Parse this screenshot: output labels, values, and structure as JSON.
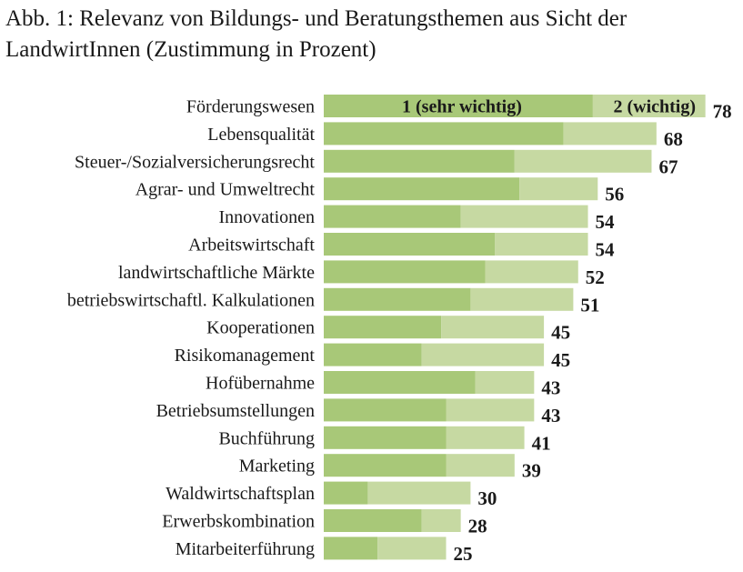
{
  "colors": {
    "sehr_wichtig": "#a8c878",
    "wichtig": "#c6d9a2",
    "text": "#1a1a1a"
  },
  "chart_data": {
    "type": "bar",
    "orientation": "horizontal",
    "stacked": true,
    "title": "Abb. 1: Relevanz von Bildungs- und Beratungsthemen aus Sicht der LandwirtInnen (Zustimmung in Prozent)",
    "xlabel": "",
    "ylabel": "",
    "xlim": [
      0,
      80
    ],
    "grid": false,
    "legend_position": "inside-first-bar",
    "categories": [
      "Förderungswesen",
      "Lebensqualität",
      "Steuer-/Sozialversicherungsrecht",
      "Agrar- und Umweltrecht",
      "Innovationen",
      "Arbeitswirtschaft",
      "landwirtschaftliche Märkte",
      "betriebswirtschaftl. Kalkulationen",
      "Kooperationen",
      "Risikomanagement",
      "Hofübernahme",
      "Betriebsumstellungen",
      "Buchführung",
      "Marketing",
      "Waldwirtschaftsplan",
      "Erwerbskombination",
      "Mitarbeiterführung"
    ],
    "series": [
      {
        "name": "1 (sehr wichtig)",
        "values": [
          55,
          49,
          39,
          40,
          28,
          35,
          33,
          30,
          24,
          20,
          31,
          25,
          25,
          25,
          9,
          20,
          11
        ]
      },
      {
        "name": "2 (wichtig)",
        "values": [
          23,
          19,
          28,
          16,
          26,
          19,
          19,
          21,
          21,
          25,
          12,
          18,
          16,
          14,
          21,
          8,
          14
        ]
      }
    ],
    "totals": [
      78,
      68,
      67,
      56,
      54,
      54,
      52,
      51,
      45,
      45,
      43,
      43,
      41,
      39,
      30,
      28,
      25
    ]
  }
}
